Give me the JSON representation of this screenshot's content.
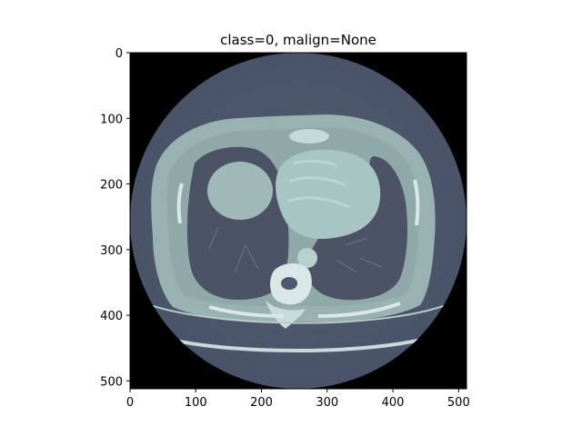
{
  "figure": {
    "title": "class=0, malign=None",
    "image_alt": "axial chest CT slice (bone colormap)",
    "colormap": "bone",
    "colors": {
      "background_black": "#000000",
      "soft_tissue": "#4e5870",
      "body_wall": "#98b1b1",
      "lung": "#4c5366",
      "organ_bright": "#a7c5c3",
      "bone": "#d9e8e6",
      "table": "#c9dbd9"
    }
  },
  "chart_data": {
    "type": "image",
    "title": "class=0, malign=None",
    "xlim": [
      0,
      512
    ],
    "ylim": [
      512,
      0
    ],
    "x_ticks": [
      "0",
      "100",
      "200",
      "300",
      "400",
      "500"
    ],
    "y_ticks": [
      "0",
      "100",
      "200",
      "300",
      "400",
      "500"
    ],
    "x_tick_values": [
      0,
      100,
      200,
      300,
      400,
      500
    ],
    "y_tick_values": [
      0,
      100,
      200,
      300,
      400,
      500
    ]
  }
}
